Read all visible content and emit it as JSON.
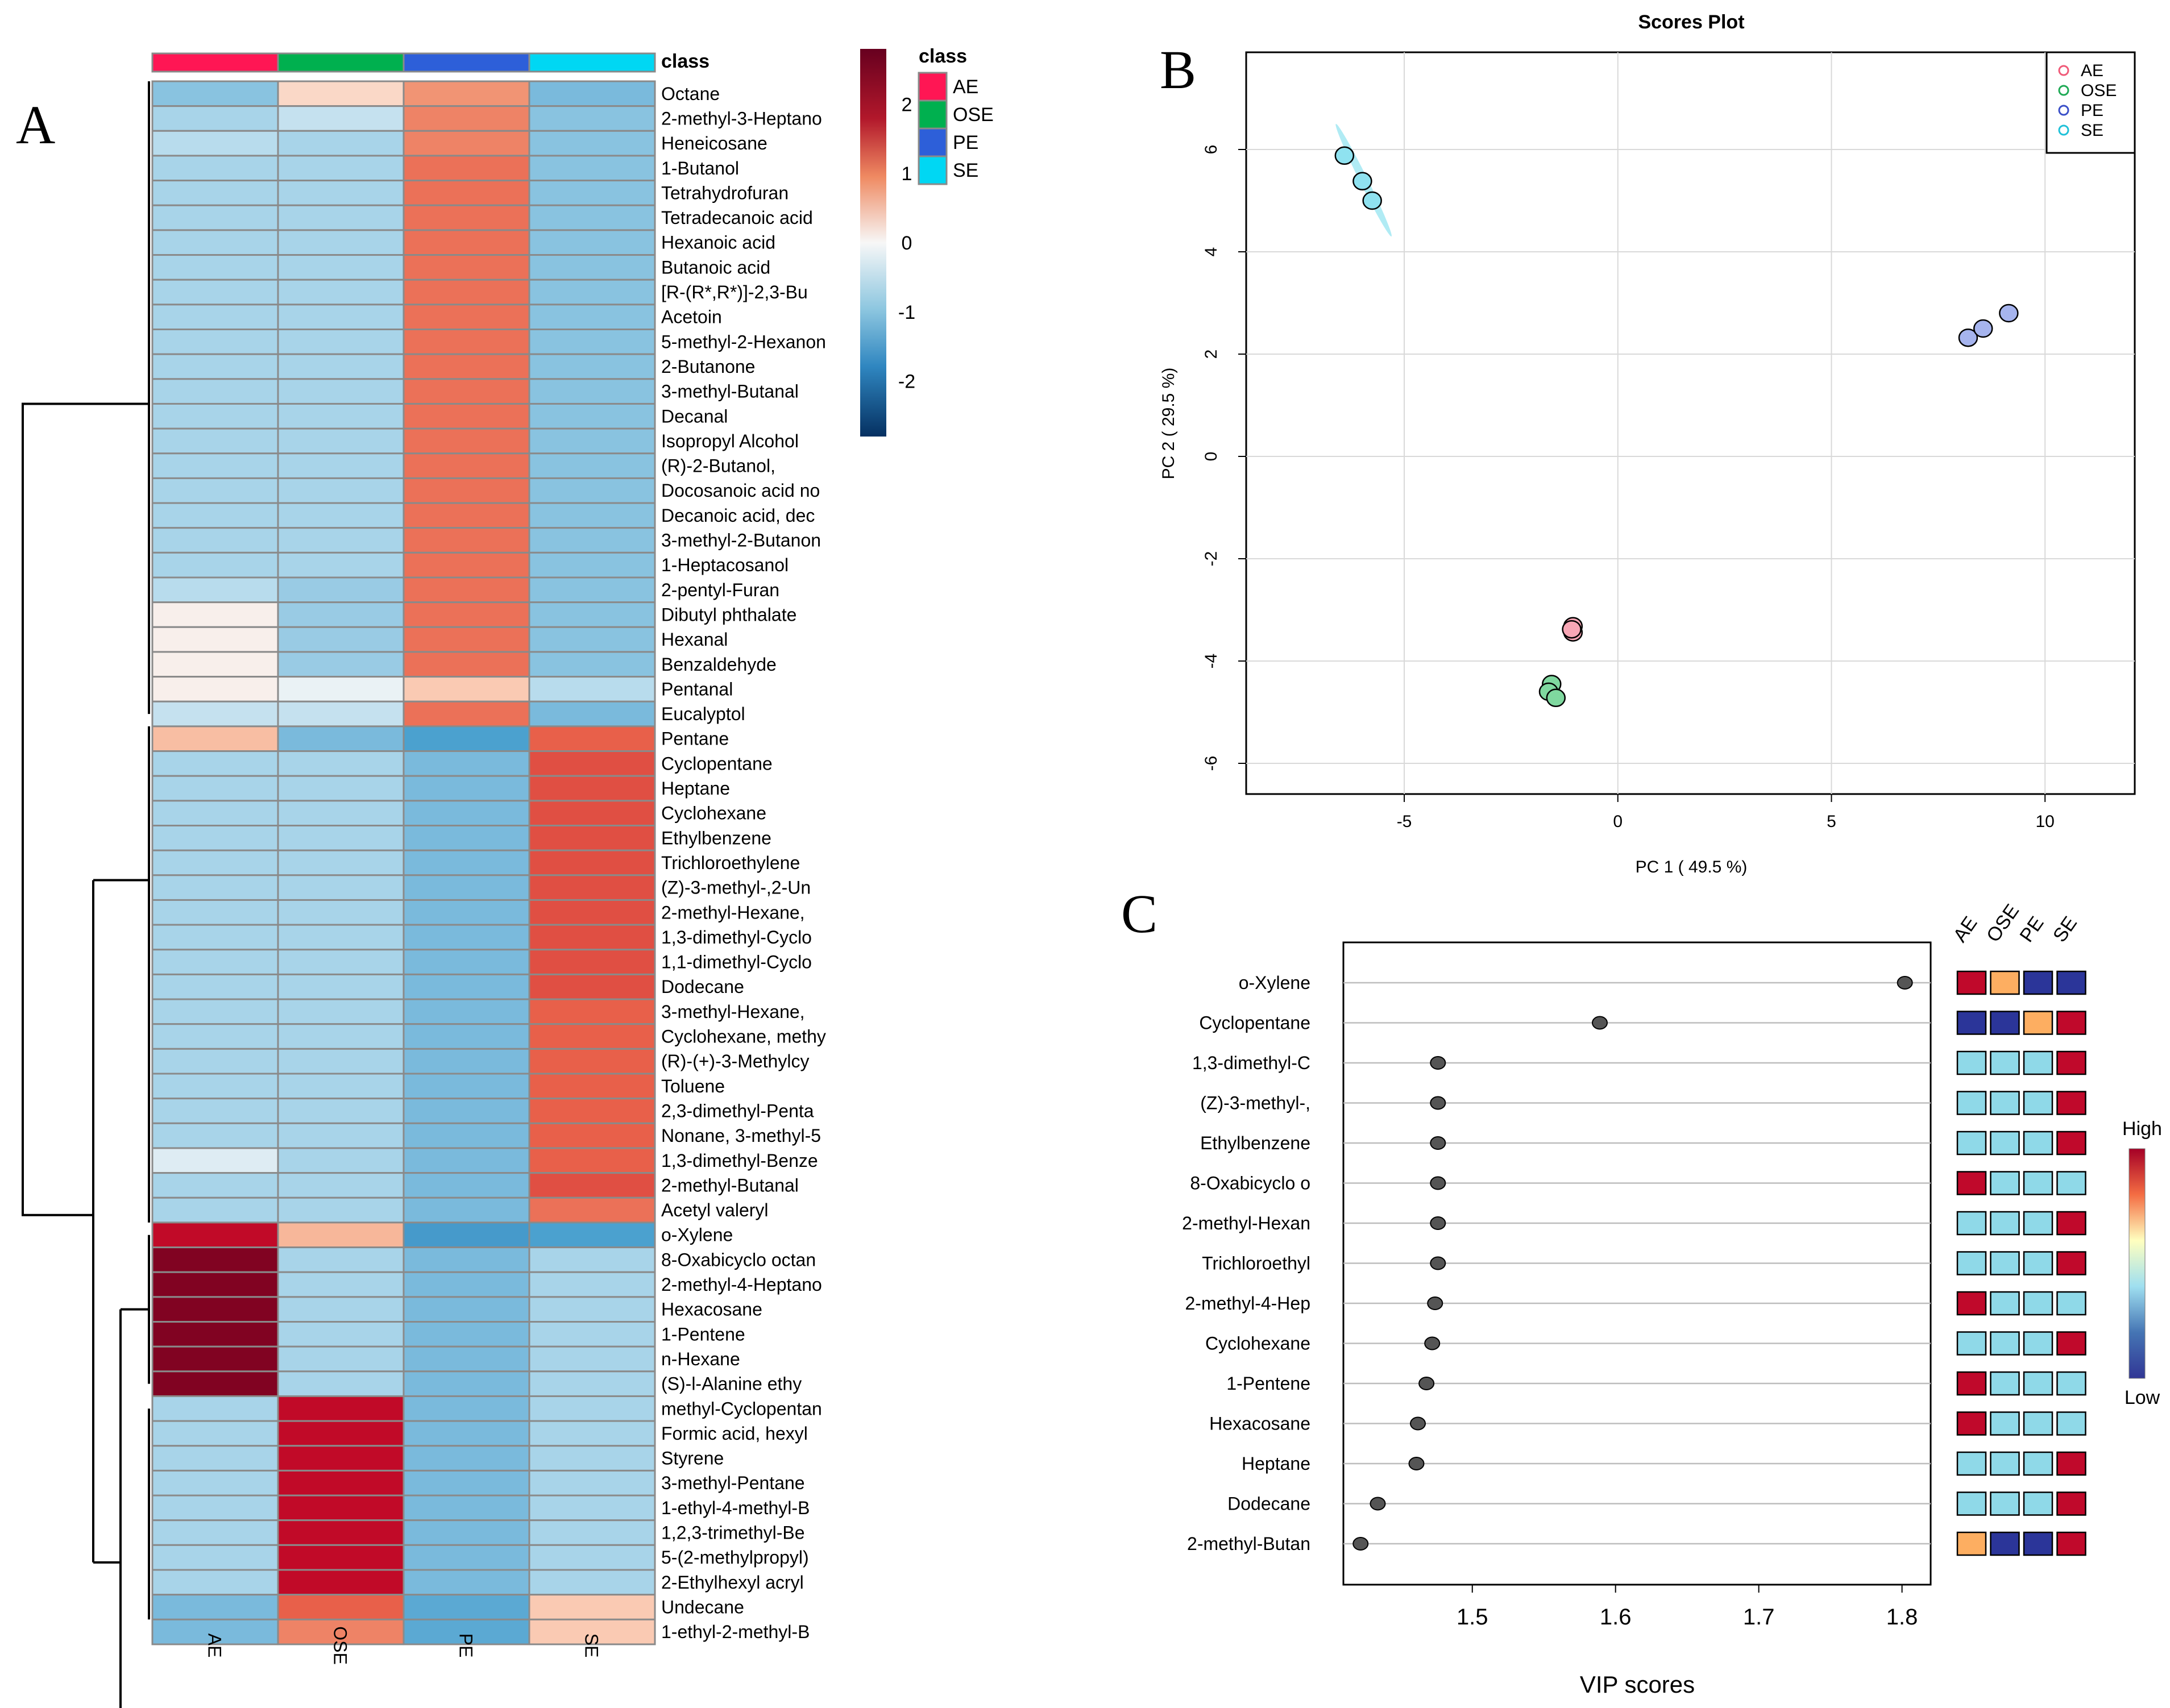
{
  "panel_labels": {
    "a": "A",
    "b": "B",
    "c": "C"
  },
  "colors": {
    "heat_low": "#053061",
    "heat_mid": "#f7f7f7",
    "heat_high": "#67001f",
    "vip_low": "#313695",
    "vip_high": "#a50026",
    "point_fill": "#555555"
  },
  "chart_data": [
    {
      "type": "heatmap",
      "panel": "A",
      "columns": [
        "AE",
        "OSE",
        "PE",
        "SE"
      ],
      "class_title": "class",
      "class_legend": [
        {
          "label": "AE",
          "color": "#ff1654"
        },
        {
          "label": "OSE",
          "color": "#00b04f"
        },
        {
          "label": "PE",
          "color": "#2d5fd9"
        },
        {
          "label": "SE",
          "color": "#00d7f3"
        }
      ],
      "scale": {
        "min": -2.8,
        "max": 2.8,
        "ticks": [
          2,
          1,
          0,
          -1,
          -2
        ]
      },
      "rows": [
        {
          "name": "Octane",
          "values": [
            -0.8,
            0.4,
            1.3,
            -0.9
          ]
        },
        {
          "name": "2-methyl-3-Heptano",
          "values": [
            -0.6,
            -0.4,
            1.4,
            -0.8
          ]
        },
        {
          "name": "Heneicosane",
          "values": [
            -0.5,
            -0.6,
            1.4,
            -0.8
          ]
        },
        {
          "name": "1-Butanol",
          "values": [
            -0.6,
            -0.6,
            1.5,
            -0.8
          ]
        },
        {
          "name": "Tetrahydrofuran",
          "values": [
            -0.6,
            -0.6,
            1.5,
            -0.8
          ]
        },
        {
          "name": "Tetradecanoic acid",
          "values": [
            -0.6,
            -0.6,
            1.5,
            -0.8
          ]
        },
        {
          "name": "Hexanoic acid",
          "values": [
            -0.6,
            -0.6,
            1.5,
            -0.8
          ]
        },
        {
          "name": "Butanoic acid",
          "values": [
            -0.6,
            -0.6,
            1.5,
            -0.8
          ]
        },
        {
          "name": "[R-(R*,R*)]-2,3-Bu",
          "values": [
            -0.6,
            -0.6,
            1.5,
            -0.8
          ]
        },
        {
          "name": "Acetoin",
          "values": [
            -0.6,
            -0.6,
            1.5,
            -0.8
          ]
        },
        {
          "name": "5-methyl-2-Hexanon",
          "values": [
            -0.6,
            -0.6,
            1.5,
            -0.8
          ]
        },
        {
          "name": "2-Butanone",
          "values": [
            -0.6,
            -0.6,
            1.5,
            -0.8
          ]
        },
        {
          "name": "3-methyl-Butanal",
          "values": [
            -0.6,
            -0.6,
            1.5,
            -0.8
          ]
        },
        {
          "name": "Decanal",
          "values": [
            -0.6,
            -0.6,
            1.5,
            -0.8
          ]
        },
        {
          "name": "Isopropyl Alcohol",
          "values": [
            -0.6,
            -0.6,
            1.5,
            -0.8
          ]
        },
        {
          "name": "(R)-2-Butanol,",
          "values": [
            -0.6,
            -0.6,
            1.5,
            -0.8
          ]
        },
        {
          "name": "Docosanoic acid no",
          "values": [
            -0.6,
            -0.6,
            1.5,
            -0.8
          ]
        },
        {
          "name": "Decanoic acid, dec",
          "values": [
            -0.6,
            -0.6,
            1.5,
            -0.8
          ]
        },
        {
          "name": "3-methyl-2-Butanon",
          "values": [
            -0.6,
            -0.6,
            1.5,
            -0.8
          ]
        },
        {
          "name": "1-Heptacosanol",
          "values": [
            -0.6,
            -0.6,
            1.5,
            -0.8
          ]
        },
        {
          "name": "2-pentyl-Furan",
          "values": [
            -0.5,
            -0.7,
            1.5,
            -0.8
          ]
        },
        {
          "name": "Dibutyl phthalate",
          "values": [
            0.1,
            -0.7,
            1.5,
            -0.8
          ]
        },
        {
          "name": "Hexanal",
          "values": [
            0.1,
            -0.7,
            1.5,
            -0.8
          ]
        },
        {
          "name": "Benzaldehyde",
          "values": [
            0.1,
            -0.7,
            1.5,
            -0.8
          ]
        },
        {
          "name": "Pentanal",
          "values": [
            0.1,
            -0.1,
            0.6,
            -0.5
          ]
        },
        {
          "name": "Eucalyptol",
          "values": [
            -0.4,
            -0.4,
            1.5,
            -0.9
          ]
        },
        {
          "name": "Pentane",
          "values": [
            0.8,
            -0.9,
            -1.2,
            1.6
          ]
        },
        {
          "name": "Cyclopentane",
          "values": [
            -0.6,
            -0.6,
            -0.9,
            1.7
          ]
        },
        {
          "name": "Heptane",
          "values": [
            -0.6,
            -0.6,
            -0.9,
            1.7
          ]
        },
        {
          "name": "Cyclohexane",
          "values": [
            -0.6,
            -0.6,
            -0.9,
            1.7
          ]
        },
        {
          "name": "Ethylbenzene",
          "values": [
            -0.6,
            -0.6,
            -0.9,
            1.7
          ]
        },
        {
          "name": "Trichloroethylene",
          "values": [
            -0.6,
            -0.6,
            -0.9,
            1.7
          ]
        },
        {
          "name": "(Z)-3-methyl-,2-Un",
          "values": [
            -0.6,
            -0.6,
            -0.9,
            1.7
          ]
        },
        {
          "name": "2-methyl-Hexane,",
          "values": [
            -0.6,
            -0.6,
            -0.9,
            1.7
          ]
        },
        {
          "name": "1,3-dimethyl-Cyclo",
          "values": [
            -0.6,
            -0.6,
            -0.9,
            1.7
          ]
        },
        {
          "name": "1,1-dimethyl-Cyclo",
          "values": [
            -0.6,
            -0.6,
            -0.9,
            1.7
          ]
        },
        {
          "name": "Dodecane",
          "values": [
            -0.6,
            -0.6,
            -0.9,
            1.7
          ]
        },
        {
          "name": "3-methyl-Hexane,",
          "values": [
            -0.6,
            -0.6,
            -0.9,
            1.6
          ]
        },
        {
          "name": "Cyclohexane, methy",
          "values": [
            -0.6,
            -0.6,
            -0.9,
            1.6
          ]
        },
        {
          "name": "(R)-(+)-3-Methylcy",
          "values": [
            -0.6,
            -0.6,
            -0.9,
            1.6
          ]
        },
        {
          "name": "Toluene",
          "values": [
            -0.6,
            -0.6,
            -0.9,
            1.6
          ]
        },
        {
          "name": "2,3-dimethyl-Penta",
          "values": [
            -0.6,
            -0.6,
            -0.9,
            1.6
          ]
        },
        {
          "name": "Nonane, 3-methyl-5",
          "values": [
            -0.6,
            -0.6,
            -0.9,
            1.6
          ]
        },
        {
          "name": "1,3-dimethyl-Benze",
          "values": [
            -0.2,
            -0.6,
            -0.9,
            1.6
          ]
        },
        {
          "name": "2-methyl-Butanal",
          "values": [
            -0.6,
            -0.6,
            -0.9,
            1.7
          ]
        },
        {
          "name": "Acetyl valeryl",
          "values": [
            -0.6,
            -0.6,
            -0.9,
            1.5
          ]
        },
        {
          "name": "o-Xylene",
          "values": [
            2.1,
            0.9,
            -1.3,
            -1.2
          ]
        },
        {
          "name": "8-Oxabicyclo octan",
          "values": [
            2.6,
            -0.6,
            -0.9,
            -0.6
          ]
        },
        {
          "name": "2-methyl-4-Heptano",
          "values": [
            2.6,
            -0.6,
            -0.9,
            -0.6
          ]
        },
        {
          "name": "Hexacosane",
          "values": [
            2.6,
            -0.6,
            -0.9,
            -0.6
          ]
        },
        {
          "name": "1-Pentene",
          "values": [
            2.6,
            -0.6,
            -0.9,
            -0.6
          ]
        },
        {
          "name": "n-Hexane",
          "values": [
            2.6,
            -0.6,
            -0.9,
            -0.6
          ]
        },
        {
          "name": "(S)-l-Alanine ethy",
          "values": [
            2.6,
            -0.6,
            -0.9,
            -0.6
          ]
        },
        {
          "name": "methyl-Cyclopentan",
          "values": [
            -0.6,
            2.1,
            -0.9,
            -0.6
          ]
        },
        {
          "name": "Formic acid, hexyl",
          "values": [
            -0.6,
            2.1,
            -0.9,
            -0.6
          ]
        },
        {
          "name": "Styrene",
          "values": [
            -0.6,
            2.1,
            -0.9,
            -0.6
          ]
        },
        {
          "name": "3-methyl-Pentane",
          "values": [
            -0.6,
            2.1,
            -0.9,
            -0.6
          ]
        },
        {
          "name": "1-ethyl-4-methyl-B",
          "values": [
            -0.6,
            2.1,
            -0.9,
            -0.6
          ]
        },
        {
          "name": "1,2,3-trimethyl-Be",
          "values": [
            -0.6,
            2.1,
            -0.9,
            -0.6
          ]
        },
        {
          "name": "5-(2-methylpropyl)",
          "values": [
            -0.6,
            2.1,
            -0.9,
            -0.6
          ]
        },
        {
          "name": "2-Ethylhexyl acryl",
          "values": [
            -0.6,
            2.1,
            -0.9,
            -0.6
          ]
        },
        {
          "name": "Undecane",
          "values": [
            -0.9,
            1.6,
            -1.1,
            0.6
          ]
        },
        {
          "name": "1-ethyl-2-methyl-B",
          "values": [
            -0.9,
            1.4,
            -1.1,
            0.6
          ]
        }
      ]
    },
    {
      "type": "scatter",
      "panel": "B",
      "title": "Scores Plot",
      "xlabel": "PC 1 ( 49.5 %)",
      "ylabel": "PC 2 ( 29.5 %)",
      "xlim": [
        -8.7,
        12.1
      ],
      "ylim": [
        -6.6,
        7.9
      ],
      "xticks": [
        -5,
        0,
        5,
        10
      ],
      "yticks": [
        -6,
        -4,
        -2,
        0,
        2,
        4,
        6
      ],
      "series": [
        {
          "name": "AE",
          "color": "#f05a78",
          "fill": "#f8a6b5",
          "points": [
            [
              -1.05,
              -3.32
            ],
            [
              -1.05,
              -3.44
            ],
            [
              -1.08,
              -3.38
            ]
          ]
        },
        {
          "name": "OSE",
          "color": "#1faa55",
          "fill": "#7fd89f",
          "points": [
            [
              -1.55,
              -4.45
            ],
            [
              -1.62,
              -4.6
            ],
            [
              -1.45,
              -4.72
            ]
          ]
        },
        {
          "name": "PE",
          "color": "#3a4fc8",
          "fill": "#a6b4ee",
          "points": [
            [
              8.2,
              2.32
            ],
            [
              8.55,
              2.5
            ],
            [
              9.15,
              2.8
            ]
          ]
        },
        {
          "name": "SE",
          "color": "#1fc1d8",
          "fill": "#8fe2f0",
          "points": [
            [
              -6.4,
              5.88
            ],
            [
              -5.98,
              5.38
            ],
            [
              -5.75,
              5.0
            ]
          ]
        }
      ],
      "ellipse_series": "SE"
    },
    {
      "type": "scatter",
      "panel": "C",
      "xlabel": "VIP scores",
      "xlim": [
        1.41,
        1.82
      ],
      "xticks": [
        1.5,
        1.6,
        1.7,
        1.8
      ],
      "columns": [
        "AE",
        "OSE",
        "PE",
        "SE"
      ],
      "legend_high": "High",
      "legend_low": "Low",
      "items": [
        {
          "name": "o-Xylene",
          "vip": 1.802,
          "levels": [
            4,
            3,
            0,
            0
          ]
        },
        {
          "name": "Cyclopentane",
          "vip": 1.589,
          "levels": [
            0,
            0,
            3,
            4
          ]
        },
        {
          "name": "1,3-dimethyl-C",
          "vip": 1.476,
          "levels": [
            1,
            1,
            1,
            4
          ]
        },
        {
          "name": "(Z)-3-methyl-,",
          "vip": 1.476,
          "levels": [
            1,
            1,
            1,
            4
          ]
        },
        {
          "name": "Ethylbenzene",
          "vip": 1.476,
          "levels": [
            1,
            1,
            1,
            4
          ]
        },
        {
          "name": "8-Oxabicyclo o",
          "vip": 1.476,
          "levels": [
            4,
            1,
            1,
            1
          ]
        },
        {
          "name": "2-methyl-Hexan",
          "vip": 1.476,
          "levels": [
            1,
            1,
            1,
            4
          ]
        },
        {
          "name": "Trichloroethyl",
          "vip": 1.476,
          "levels": [
            1,
            1,
            1,
            4
          ]
        },
        {
          "name": "2-methyl-4-Hep",
          "vip": 1.474,
          "levels": [
            4,
            1,
            1,
            1
          ]
        },
        {
          "name": "Cyclohexane",
          "vip": 1.472,
          "levels": [
            1,
            1,
            1,
            4
          ]
        },
        {
          "name": "1-Pentene",
          "vip": 1.468,
          "levels": [
            4,
            1,
            1,
            1
          ]
        },
        {
          "name": "Hexacosane",
          "vip": 1.462,
          "levels": [
            4,
            1,
            1,
            1
          ]
        },
        {
          "name": "Heptane",
          "vip": 1.461,
          "levels": [
            1,
            1,
            1,
            4
          ]
        },
        {
          "name": "Dodecane",
          "vip": 1.434,
          "levels": [
            1,
            1,
            1,
            4
          ]
        },
        {
          "name": "2-methyl-Butan",
          "vip": 1.422,
          "levels": [
            3,
            0,
            0,
            4
          ]
        }
      ],
      "level_colors": [
        "#2b3599",
        "#8fd9e8",
        "#f4f4f4",
        "#fdae61",
        "#c0092b"
      ]
    }
  ]
}
